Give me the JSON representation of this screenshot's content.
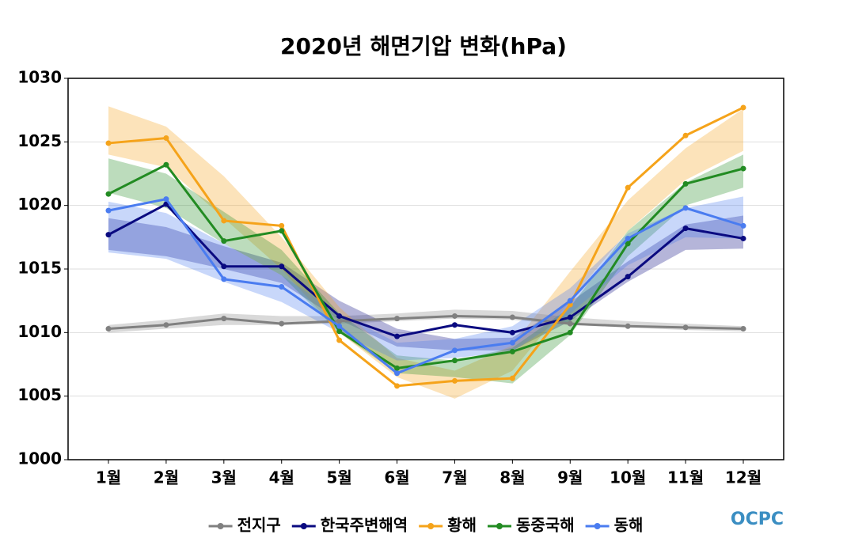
{
  "chart_data": {
    "type": "line",
    "title": "2020년 해면기압 변화(hPa)",
    "categories": [
      "1월",
      "2월",
      "3월",
      "4월",
      "5월",
      "6월",
      "7월",
      "8월",
      "9월",
      "10월",
      "11월",
      "12월"
    ],
    "ylim": [
      1000,
      1030
    ],
    "yticks": [
      1000,
      1005,
      1010,
      1015,
      1020,
      1025,
      1030
    ],
    "grid": true,
    "legend": "bottom",
    "series": [
      {
        "name": "전지구",
        "color": "#808080",
        "values": [
          1010.3,
          1010.6,
          1011.1,
          1010.7,
          1010.9,
          1011.1,
          1011.3,
          1011.2,
          1010.7,
          1010.5,
          1010.4,
          1010.3
        ],
        "band": {
          "lower": [
            1010.0,
            1010.3,
            1010.6,
            1010.6,
            1010.7,
            1010.9,
            1011.1,
            1011.0,
            1010.6,
            1010.4,
            1010.2,
            1010.1
          ],
          "upper": [
            1010.6,
            1011.0,
            1011.5,
            1011.3,
            1011.3,
            1011.5,
            1011.8,
            1011.7,
            1011.2,
            1010.9,
            1010.7,
            1010.5
          ]
        }
      },
      {
        "name": "한국주변해역",
        "color": "#0a0a80",
        "values": [
          1017.7,
          1020.1,
          1015.2,
          1015.2,
          1011.3,
          1009.7,
          1010.6,
          1010.0,
          1011.2,
          1014.4,
          1018.2,
          1017.4
        ],
        "band": {
          "lower": [
            1016.5,
            1016.0,
            1015.0,
            1013.9,
            1011.0,
            1008.9,
            1008.6,
            1008.6,
            1010.9,
            1014.0,
            1016.5,
            1016.6
          ],
          "upper": [
            1019.0,
            1018.3,
            1016.8,
            1015.5,
            1012.5,
            1010.3,
            1009.5,
            1009.6,
            1012.4,
            1015.6,
            1018.5,
            1019.2
          ]
        }
      },
      {
        "name": "황해",
        "color": "#f5a31a",
        "values": [
          1024.9,
          1025.3,
          1018.8,
          1018.4,
          1009.4,
          1005.8,
          1006.2,
          1006.4,
          1012.2,
          1021.4,
          1025.5,
          1027.7
        ],
        "band": {
          "lower": [
            1024.0,
            1023.0,
            1019.0,
            1015.0,
            1010.0,
            1006.5,
            1004.8,
            1007.0,
            1012.5,
            1018.0,
            1022.0,
            1024.3
          ],
          "upper": [
            1027.8,
            1026.2,
            1022.3,
            1017.5,
            1012.0,
            1008.0,
            1007.0,
            1009.0,
            1014.8,
            1020.4,
            1024.5,
            1027.6
          ]
        }
      },
      {
        "name": "동중국해",
        "color": "#228b22",
        "values": [
          1020.9,
          1023.2,
          1017.2,
          1018.0,
          1010.1,
          1007.2,
          1007.8,
          1008.5,
          1010.0,
          1017.0,
          1021.7,
          1022.9
        ],
        "band": {
          "lower": [
            1021.0,
            1019.8,
            1017.0,
            1014.5,
            1010.0,
            1006.8,
            1006.5,
            1006.0,
            1009.8,
            1016.0,
            1020.0,
            1021.4
          ],
          "upper": [
            1023.7,
            1022.5,
            1019.5,
            1016.5,
            1011.5,
            1008.2,
            1007.8,
            1008.8,
            1012.0,
            1018.0,
            1021.8,
            1024.0
          ]
        }
      },
      {
        "name": "동해",
        "color": "#4a7cf0",
        "values": [
          1019.6,
          1020.5,
          1014.2,
          1013.6,
          1010.5,
          1006.8,
          1008.6,
          1009.2,
          1012.5,
          1017.4,
          1019.8,
          1018.4
        ],
        "band": {
          "lower": [
            1016.3,
            1015.8,
            1014.0,
            1012.4,
            1010.0,
            1007.8,
            1008.0,
            1008.5,
            1011.5,
            1015.3,
            1017.5,
            1017.4
          ],
          "upper": [
            1020.3,
            1019.4,
            1017.0,
            1014.5,
            1011.5,
            1009.2,
            1009.5,
            1010.5,
            1013.5,
            1017.8,
            1019.8,
            1020.7
          ]
        }
      }
    ]
  },
  "logo": "OCPC"
}
